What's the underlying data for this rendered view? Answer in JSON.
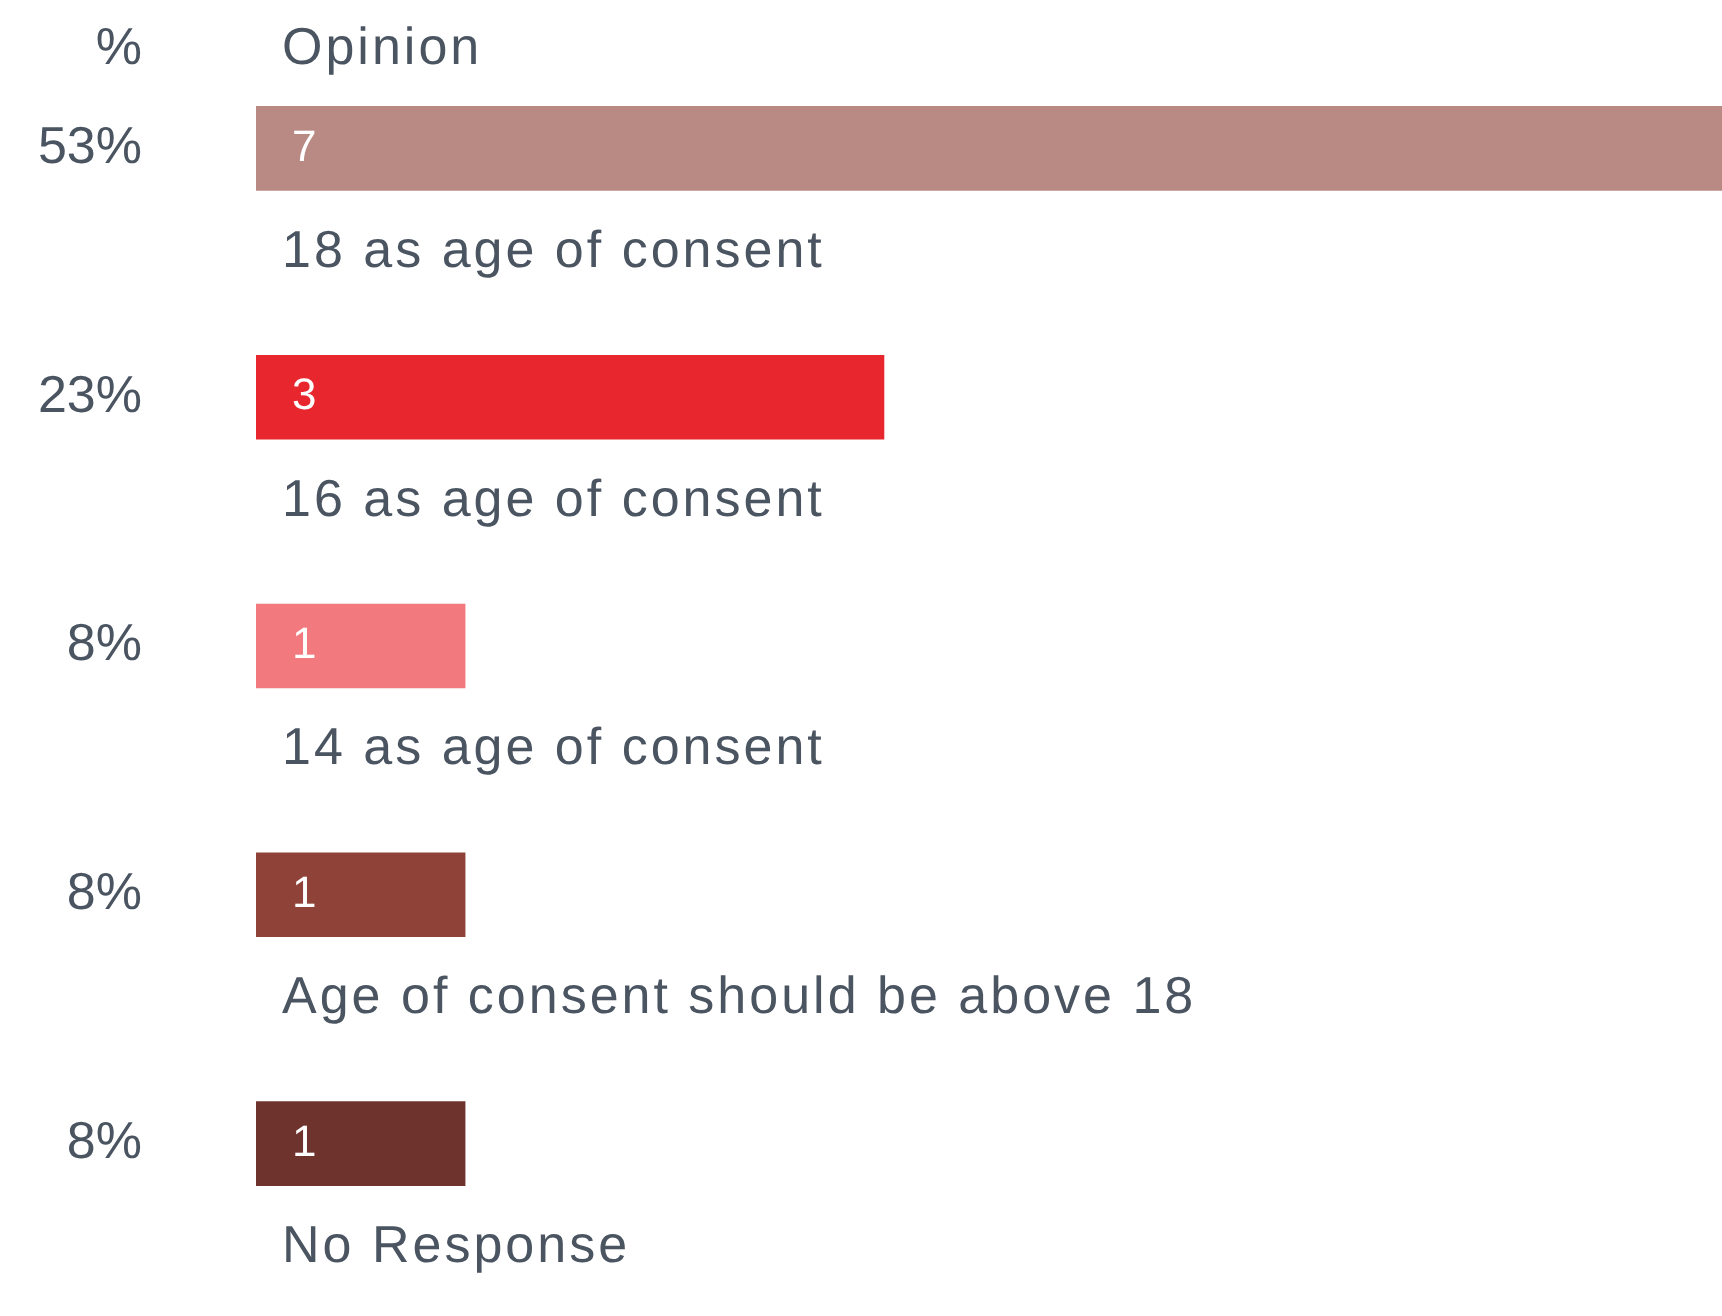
{
  "chart_data": {
    "type": "bar",
    "orientation": "horizontal",
    "ylabel": "Opinion",
    "categories": [
      "18 as age of consent",
      "16 as age of consent",
      "14 as age of consent",
      "Age of consent should be above 18",
      "No Response"
    ],
    "values": [
      7,
      3,
      1,
      1,
      1
    ],
    "colors": [
      "#b88a83",
      "#e8262e",
      "#f27a7e",
      "#8f4238",
      "#6e332d"
    ],
    "data_labels": true,
    "annotations": [
      "%",
      "53%",
      "23%",
      "8%",
      "8%",
      "8%"
    ],
    "legend": false,
    "tick_labels": false
  }
}
